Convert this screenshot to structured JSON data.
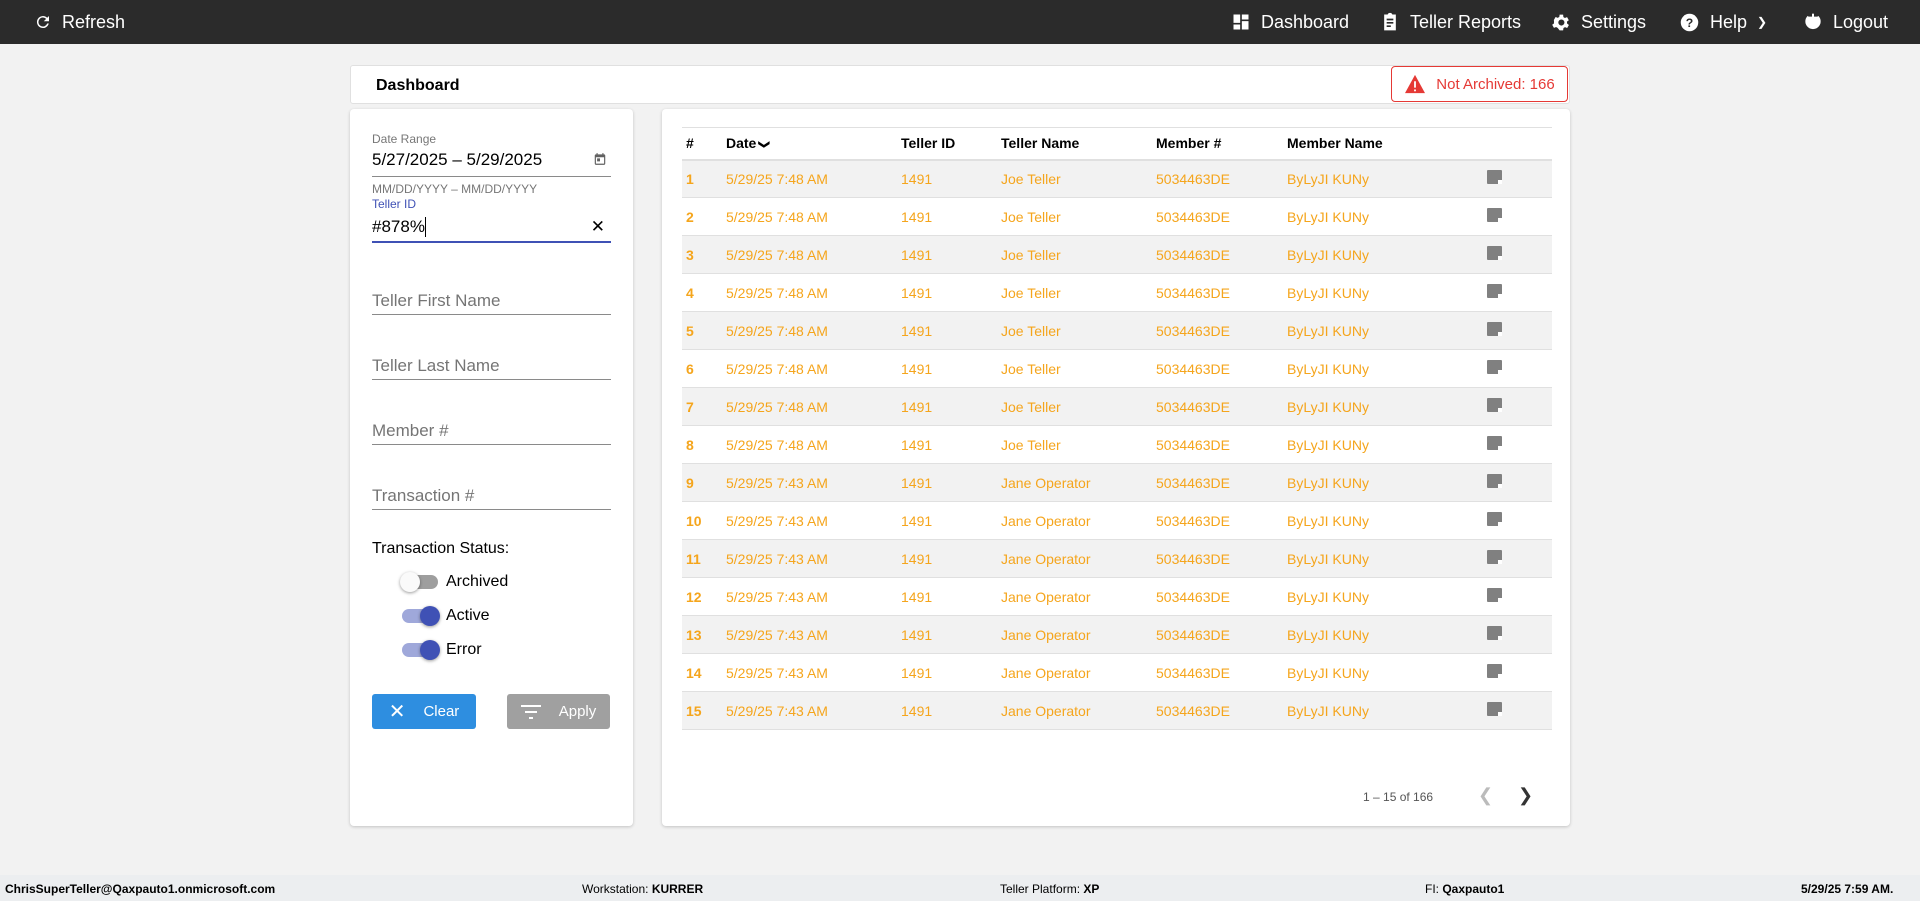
{
  "topbar": {
    "refresh": "Refresh",
    "dashboard": "Dashboard",
    "reports": "Teller Reports",
    "settings": "Settings",
    "help": "Help",
    "logout": "Logout"
  },
  "header": {
    "title": "Dashboard",
    "badge": "Not Archived: 166"
  },
  "filters": {
    "date_label": "Date Range",
    "date_value": "5/27/2025 – 5/29/2025",
    "date_hint": "MM/DD/YYYY – MM/DD/YYYY",
    "teller_id_label": "Teller ID",
    "teller_id_value": "#878%",
    "first_name_ph": "Teller First Name",
    "last_name_ph": "Teller Last Name",
    "member_ph": "Member #",
    "transaction_ph": "Transaction #",
    "status_label": "Transaction Status:",
    "statuses": [
      {
        "label": "Archived",
        "on": false
      },
      {
        "label": "Active",
        "on": true
      },
      {
        "label": "Error",
        "on": true
      }
    ],
    "clear": "Clear",
    "apply": "Apply"
  },
  "table": {
    "headers": [
      "#",
      "Date",
      "Teller ID",
      "Teller Name",
      "Member #",
      "Member Name"
    ],
    "rows": [
      [
        "1",
        "5/29/25 7:48 AM",
        "1491",
        "Joe Teller",
        "5034463DE",
        "ByLyJI KUNy"
      ],
      [
        "2",
        "5/29/25 7:48 AM",
        "1491",
        "Joe Teller",
        "5034463DE",
        "ByLyJI KUNy"
      ],
      [
        "3",
        "5/29/25 7:48 AM",
        "1491",
        "Joe Teller",
        "5034463DE",
        "ByLyJI KUNy"
      ],
      [
        "4",
        "5/29/25 7:48 AM",
        "1491",
        "Joe Teller",
        "5034463DE",
        "ByLyJI KUNy"
      ],
      [
        "5",
        "5/29/25 7:48 AM",
        "1491",
        "Joe Teller",
        "5034463DE",
        "ByLyJI KUNy"
      ],
      [
        "6",
        "5/29/25 7:48 AM",
        "1491",
        "Joe Teller",
        "5034463DE",
        "ByLyJI KUNy"
      ],
      [
        "7",
        "5/29/25 7:48 AM",
        "1491",
        "Joe Teller",
        "5034463DE",
        "ByLyJI KUNy"
      ],
      [
        "8",
        "5/29/25 7:48 AM",
        "1491",
        "Joe Teller",
        "5034463DE",
        "ByLyJI KUNy"
      ],
      [
        "9",
        "5/29/25 7:43 AM",
        "1491",
        "Jane Operator",
        "5034463DE",
        "ByLyJI KUNy"
      ],
      [
        "10",
        "5/29/25 7:43 AM",
        "1491",
        "Jane Operator",
        "5034463DE",
        "ByLyJI KUNy"
      ],
      [
        "11",
        "5/29/25 7:43 AM",
        "1491",
        "Jane Operator",
        "5034463DE",
        "ByLyJI KUNy"
      ],
      [
        "12",
        "5/29/25 7:43 AM",
        "1491",
        "Jane Operator",
        "5034463DE",
        "ByLyJI KUNy"
      ],
      [
        "13",
        "5/29/25 7:43 AM",
        "1491",
        "Jane Operator",
        "5034463DE",
        "ByLyJI KUNy"
      ],
      [
        "14",
        "5/29/25 7:43 AM",
        "1491",
        "Jane Operator",
        "5034463DE",
        "ByLyJI KUNy"
      ],
      [
        "15",
        "5/29/25 7:43 AM",
        "1491",
        "Jane Operator",
        "5034463DE",
        "ByLyJI KUNy"
      ]
    ],
    "pagination": "1 – 15 of 166"
  },
  "footer": {
    "user": "ChrisSuperTeller@Qaxpauto1.onmicrosoft.com",
    "ws_label": "Workstation: ",
    "ws": "KURRER",
    "tp_label": "Teller Platform: ",
    "tp": "XP",
    "fi_label": "FI: ",
    "fi": "Qaxpauto1",
    "time": "5/29/25 7:59 AM."
  },
  "colors": {
    "accent": "#3f51b5",
    "alert": "#e53935",
    "row_text": "#f5a51c",
    "clear_btn": "#2e8ee0",
    "apply_btn": "#a0a0a0"
  }
}
